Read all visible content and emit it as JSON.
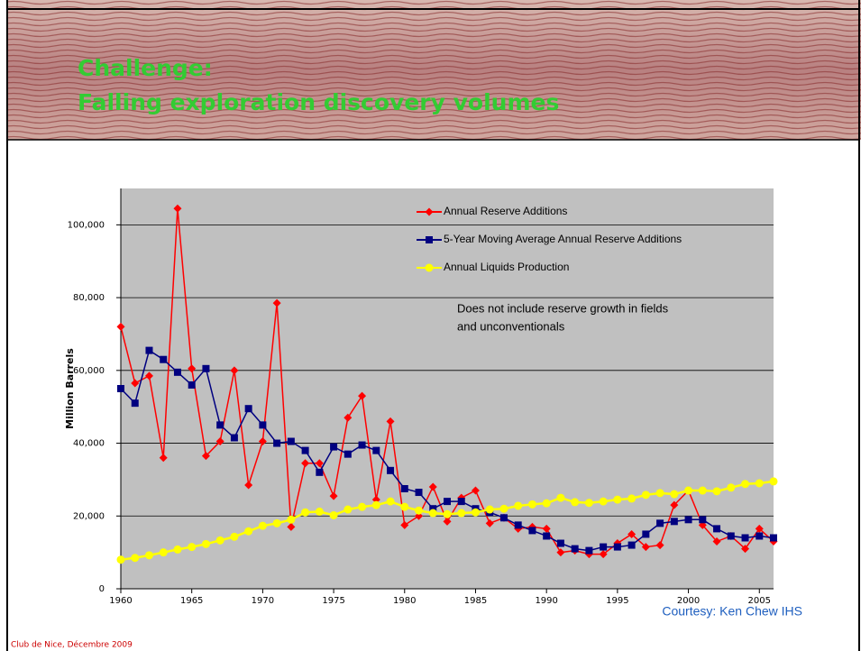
{
  "header": {
    "title_lines": [
      "Challenge:",
      "Falling exploration discovery volumes"
    ]
  },
  "credit": "Courtesy:  Ken Chew IHS",
  "footer": "Club de Nice, Décembre 2009",
  "chart_data": {
    "type": "line",
    "y_label": "Million Barrels",
    "annotation_lines": [
      "Does not include reserve growth in fields",
      "and unconventionals"
    ],
    "x": [
      1960,
      1961,
      1962,
      1963,
      1964,
      1965,
      1966,
      1967,
      1968,
      1969,
      1970,
      1971,
      1972,
      1973,
      1974,
      1975,
      1976,
      1977,
      1978,
      1979,
      1980,
      1981,
      1982,
      1983,
      1984,
      1985,
      1986,
      1987,
      1988,
      1989,
      1990,
      1991,
      1992,
      1993,
      1994,
      1995,
      1996,
      1997,
      1998,
      1999,
      2000,
      2001,
      2002,
      2003,
      2004,
      2005,
      2006
    ],
    "xlim": [
      1960,
      2006
    ],
    "xticks": [
      1960,
      1965,
      1970,
      1975,
      1980,
      1985,
      1990,
      1995,
      2000,
      2005
    ],
    "ylim": [
      0,
      110000
    ],
    "yticks": [
      0,
      {
        "value": 20000,
        "label": "20,000"
      },
      {
        "value": 40000,
        "label": "40,000"
      },
      {
        "value": 60000,
        "label": "60,000"
      },
      {
        "value": 80000,
        "label": "80,000"
      },
      {
        "value": 100000,
        "label": "100,000"
      }
    ],
    "grid": true,
    "series": [
      {
        "name": "Annual Reserve Additions",
        "color": "#ff0000",
        "marker": "diamond",
        "values": [
          72000,
          56500,
          58500,
          36000,
          104500,
          60500,
          36500,
          40500,
          60000,
          28500,
          40500,
          78500,
          17000,
          34500,
          34500,
          25500,
          47000,
          53000,
          24500,
          46000,
          17500,
          20000,
          28000,
          18500,
          25000,
          27000,
          18000,
          19500,
          16500,
          17000,
          16500,
          10000,
          10500,
          9500,
          9500,
          12500,
          15000,
          11500,
          12000,
          23000,
          27000,
          17500,
          13000,
          14500,
          11000,
          16500,
          13000
        ]
      },
      {
        "name": "5-Year Moving Average Annual Reserve Additions",
        "color": "#000080",
        "marker": "square",
        "values": [
          55000,
          51000,
          65500,
          63000,
          59500,
          56000,
          60500,
          45000,
          41500,
          49500,
          45000,
          40000,
          40500,
          38000,
          32000,
          39000,
          37000,
          39500,
          38000,
          32500,
          27500,
          26500,
          22000,
          24000,
          24000,
          22000,
          21000,
          19500,
          17500,
          16000,
          14500,
          12500,
          11000,
          10500,
          11500,
          11500,
          12000,
          15000,
          18000,
          18500,
          19000,
          19000,
          16500,
          14500,
          14000,
          14500,
          14000
        ]
      },
      {
        "name": "Annual Liquids Production",
        "color": "#ffff00",
        "marker": "circle",
        "values": [
          8000,
          8500,
          9200,
          10000,
          10800,
          11500,
          12300,
          13300,
          14300,
          15800,
          17300,
          18000,
          19000,
          21000,
          21200,
          20200,
          21800,
          22500,
          23000,
          24000,
          22500,
          21500,
          20800,
          20500,
          20800,
          21000,
          21800,
          22000,
          22800,
          23200,
          23500,
          25000,
          23800,
          23600,
          24000,
          24500,
          24800,
          25800,
          26300,
          26000,
          27000,
          27000,
          26800,
          27800,
          28800,
          29000,
          29500
        ]
      }
    ]
  }
}
